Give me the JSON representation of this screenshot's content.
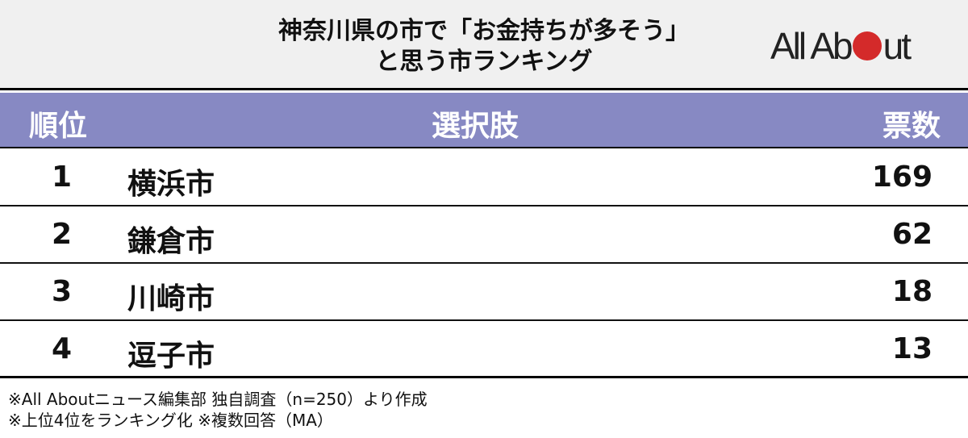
{
  "title": {
    "line1": "神奈川県の市で「お金持ちが多そう」",
    "line2": "と思う市ランキング"
  },
  "logo": {
    "text": "All About",
    "color": "#d42a2a"
  },
  "table": {
    "headers": {
      "rank": "順位",
      "choice": "選択肢",
      "votes": "票数"
    },
    "header_color": "#8789c3",
    "rows": [
      {
        "rank": "1",
        "name": "横浜市",
        "votes": "169"
      },
      {
        "rank": "2",
        "name": "鎌倉市",
        "votes": "62"
      },
      {
        "rank": "3",
        "name": "川崎市",
        "votes": "18"
      },
      {
        "rank": "4",
        "name": "逗子市",
        "votes": "13"
      }
    ]
  },
  "notes": [
    "※All Aboutニュース編集部 独自調査（n=250）より作成",
    "※上位4位をランキング化 ※複数回答（MA）"
  ]
}
